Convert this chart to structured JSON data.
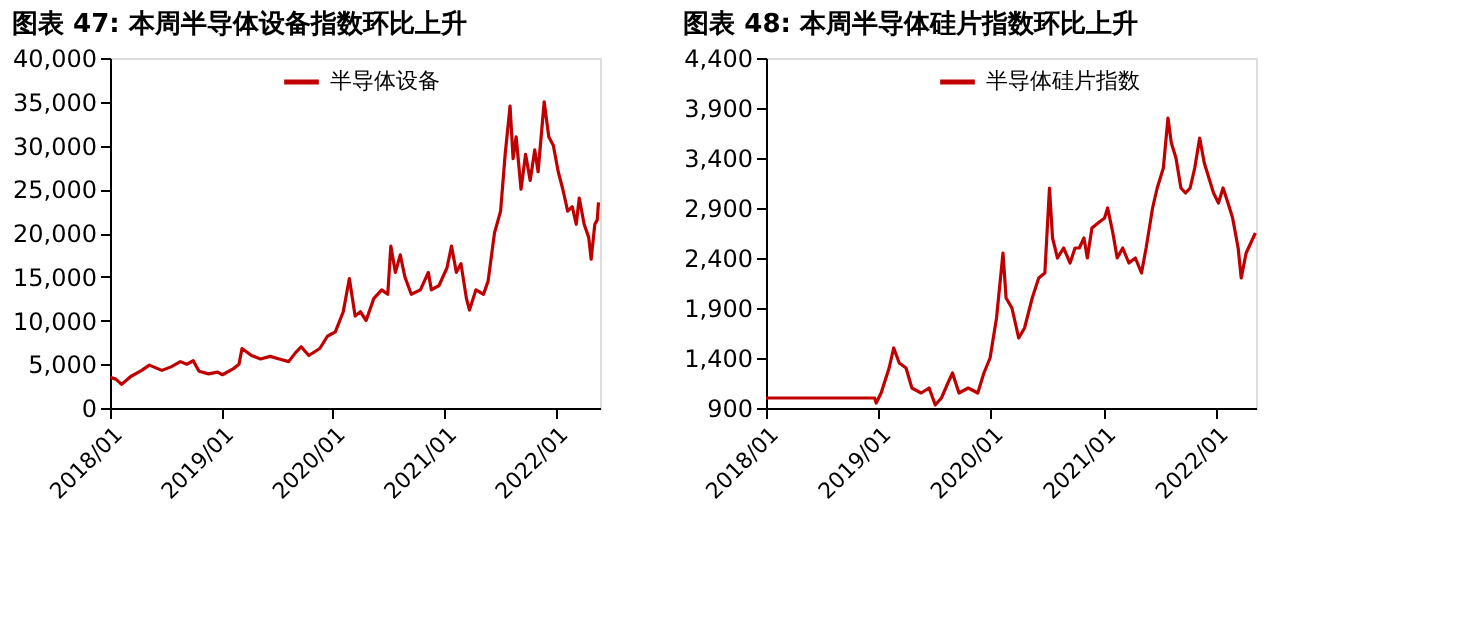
{
  "chart_data": [
    {
      "type": "line",
      "title": "图表 47:  本周半导体设备指数环比上升",
      "legend": "top",
      "xlim": [
        "2018-01-01",
        "2022-05-27"
      ],
      "line_style": "solid",
      "ylim": [
        0,
        40000
      ],
      "yticks": [
        0,
        {
          "value": 5000,
          "label": "5,000"
        },
        {
          "value": 10000,
          "label": "10,000"
        },
        {
          "value": 15000,
          "label": "15,000"
        },
        {
          "value": 20000,
          "label": "20,000"
        },
        {
          "value": 25000,
          "label": "25,000"
        },
        {
          "value": 30000,
          "label": "30,000"
        },
        {
          "value": 35000,
          "label": "35,000"
        },
        {
          "value": 40000,
          "label": "40,000"
        }
      ],
      "xticks": [
        {
          "value": "2018-01",
          "label": "2018/01"
        },
        {
          "value": "2019-01",
          "label": "2019/01"
        },
        {
          "value": "2020-01",
          "label": "2020/01"
        },
        {
          "value": "2021-01",
          "label": "2021/01"
        },
        {
          "value": "2022-01",
          "label": "2022/01"
        }
      ],
      "series": [
        {
          "name": "半导体设备",
          "color": "#c00000",
          "x": [
            "2018-01-02",
            "2018-01-20",
            "2018-02-08",
            "2018-03-10",
            "2018-04-15",
            "2018-05-10",
            "2018-06-20",
            "2018-07-20",
            "2018-08-20",
            "2018-09-10",
            "2018-10-01",
            "2018-10-20",
            "2018-11-20",
            "2018-12-20",
            "2019-01-05",
            "2019-02-10",
            "2019-02-28",
            "2019-03-10",
            "2019-04-10",
            "2019-05-10",
            "2019-06-10",
            "2019-07-10",
            "2019-08-10",
            "2019-09-01",
            "2019-09-20",
            "2019-10-15",
            "2019-11-20",
            "2019-12-15",
            "2020-01-10",
            "2020-02-05",
            "2020-02-25",
            "2020-03-15",
            "2020-04-01",
            "2020-04-20",
            "2020-05-15",
            "2020-06-10",
            "2020-06-30",
            "2020-07-10",
            "2020-07-25",
            "2020-08-10",
            "2020-08-25",
            "2020-09-15",
            "2020-10-15",
            "2020-11-10",
            "2020-11-20",
            "2020-12-15",
            "2021-01-10",
            "2021-01-25",
            "2021-02-10",
            "2021-02-25",
            "2021-03-15",
            "2021-03-25",
            "2021-04-15",
            "2021-05-10",
            "2021-05-25",
            "2021-06-15",
            "2021-07-05",
            "2021-07-20",
            "2021-08-05",
            "2021-08-15",
            "2021-08-25",
            "2021-09-10",
            "2021-09-25",
            "2021-10-10",
            "2021-10-25",
            "2021-11-05",
            "2021-11-25",
            "2021-12-10",
            "2021-12-25",
            "2022-01-10",
            "2022-01-25",
            "2022-02-10",
            "2022-02-25",
            "2022-03-10",
            "2022-03-20",
            "2022-04-05",
            "2022-04-20",
            "2022-04-28",
            "2022-05-10",
            "2022-05-18",
            "2022-05-22"
          ],
          "values": [
            3500,
            3300,
            2700,
            3600,
            4300,
            4900,
            4300,
            4700,
            5300,
            5000,
            5400,
            4200,
            3900,
            4100,
            3800,
            4500,
            5000,
            6800,
            6000,
            5600,
            5900,
            5600,
            5300,
            6300,
            7000,
            6000,
            6800,
            8200,
            8700,
            11000,
            14800,
            10500,
            11000,
            10000,
            12500,
            13500,
            13000,
            18500,
            15500,
            17500,
            15000,
            13000,
            13500,
            15500,
            13500,
            14000,
            16000,
            18500,
            15500,
            16500,
            12500,
            11200,
            13500,
            13000,
            14500,
            20000,
            22500,
            29000,
            34500,
            28500,
            31000,
            25000,
            29000,
            26000,
            29500,
            27000,
            35000,
            31000,
            30000,
            27000,
            25000,
            22500,
            23000,
            21000,
            24000,
            21000,
            19500,
            17000,
            21000,
            21500,
            23500
          ]
        }
      ]
    },
    {
      "type": "line",
      "title": "图表 48:  本周半导体硅片指数环比上升",
      "legend": "top",
      "xlim": [
        "2018-01-01",
        "2022-05-12"
      ],
      "line_style": "solid",
      "ylim": [
        900,
        4400
      ],
      "yticks": [
        900,
        {
          "value": 1400,
          "label": "1,400"
        },
        {
          "value": 1900,
          "label": "1,900"
        },
        {
          "value": 2400,
          "label": "2,400"
        },
        {
          "value": 2900,
          "label": "2,900"
        },
        {
          "value": 3400,
          "label": "3,400"
        },
        {
          "value": 3900,
          "label": "3,900"
        },
        {
          "value": 4400,
          "label": "4,400"
        }
      ],
      "xticks": [
        {
          "value": "2018-01",
          "label": "2018/01"
        },
        {
          "value": "2019-01",
          "label": "2019/01"
        },
        {
          "value": "2020-01",
          "label": "2020/01"
        },
        {
          "value": "2021-01",
          "label": "2021/01"
        },
        {
          "value": "2022-01",
          "label": "2022/01"
        }
      ],
      "series": [
        {
          "name": "半导体硅片指数",
          "color": "#c00000",
          "x": [
            "2018-01-01",
            "2018-12-20",
            "2018-12-25",
            "2019-01-10",
            "2019-02-05",
            "2019-02-20",
            "2019-03-10",
            "2019-04-01",
            "2019-04-20",
            "2019-05-20",
            "2019-06-15",
            "2019-07-05",
            "2019-07-25",
            "2019-08-15",
            "2019-08-30",
            "2019-09-20",
            "2019-10-20",
            "2019-11-20",
            "2019-12-10",
            "2019-12-30",
            "2020-01-20",
            "2020-02-10",
            "2020-02-20",
            "2020-03-10",
            "2020-04-01",
            "2020-04-20",
            "2020-05-15",
            "2020-06-05",
            "2020-06-25",
            "2020-07-10",
            "2020-07-20",
            "2020-08-05",
            "2020-08-25",
            "2020-09-15",
            "2020-10-01",
            "2020-10-15",
            "2020-10-30",
            "2020-11-10",
            "2020-11-25",
            "2020-12-15",
            "2021-01-05",
            "2021-01-15",
            "2021-02-01",
            "2021-02-15",
            "2021-03-05",
            "2021-03-25",
            "2021-04-15",
            "2021-05-05",
            "2021-05-20",
            "2021-06-10",
            "2021-06-25",
            "2021-07-15",
            "2021-07-30",
            "2021-08-10",
            "2021-08-25",
            "2021-09-10",
            "2021-09-25",
            "2021-10-10",
            "2021-10-25",
            "2021-11-10",
            "2021-11-25",
            "2021-12-10",
            "2021-12-25",
            "2022-01-10",
            "2022-01-25",
            "2022-02-10",
            "2022-02-25",
            "2022-03-15",
            "2022-03-25",
            "2022-04-10",
            "2022-04-25",
            "2022-05-10"
          ],
          "values": [
            1000,
            1000,
            950,
            1050,
            1300,
            1500,
            1350,
            1300,
            1100,
            1050,
            1100,
            930,
            1000,
            1150,
            1250,
            1050,
            1100,
            1050,
            1250,
            1400,
            1800,
            2450,
            2000,
            1900,
            1600,
            1700,
            2000,
            2200,
            2250,
            3100,
            2600,
            2400,
            2500,
            2350,
            2500,
            2500,
            2600,
            2400,
            2700,
            2750,
            2800,
            2900,
            2650,
            2400,
            2500,
            2350,
            2400,
            2250,
            2500,
            2900,
            3100,
            3300,
            3800,
            3550,
            3400,
            3100,
            3050,
            3100,
            3300,
            3600,
            3350,
            3200,
            3050,
            2950,
            3100,
            2950,
            2800,
            2500,
            2200,
            2450,
            2550,
            2650
          ]
        }
      ]
    }
  ]
}
